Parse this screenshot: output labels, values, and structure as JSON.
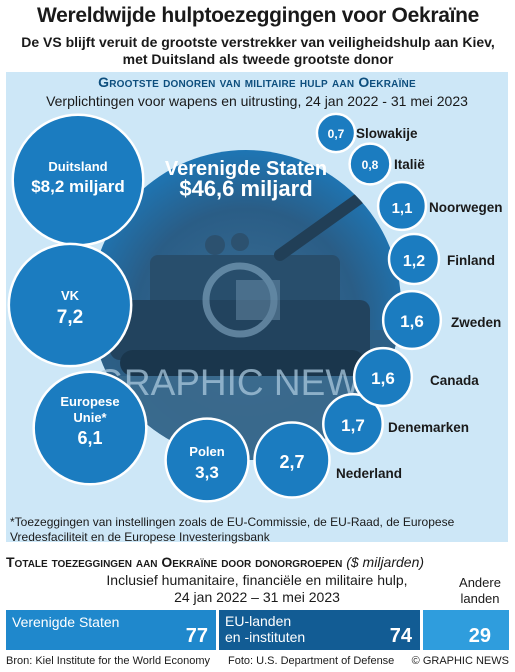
{
  "header": {
    "title": "Wereldwijde hulptoezeggingen voor Oekraïne",
    "subtitle_line1": "De VS blijft veruit de grootste verstrekker van veiligheidshulp aan Kiev,",
    "subtitle_line2": "met Duitsland als tweede grootste donor"
  },
  "military_panel": {
    "heading": "Grootste donoren van militaire hulp aan Oekraïne",
    "subheading": "Verplichtingen voor wapens en uitrusting, 24 jan 2022 - 31 mei 2023",
    "watermark": "GRAPHIC NEWS",
    "footnote": "*Toezeggingen van instellingen zoals de EU-Commissie, de EU-Raad, de Europese Vredesfaciliteit en de Europese Investeringsbank"
  },
  "chart_data": [
    {
      "type": "bubble",
      "title": "Grootste donoren van militaire hulp aan Oekraïne",
      "unit": "$ miljard",
      "points": [
        {
          "name": "Verenigde Staten",
          "value": 46.6,
          "label": "$46,6 miljard"
        },
        {
          "name": "Duitsland",
          "value": 8.2,
          "label": "$8,2 miljard"
        },
        {
          "name": "VK",
          "value": 7.2,
          "label": "7,2"
        },
        {
          "name": "Europese Unie*",
          "value": 6.1,
          "label": "6,1"
        },
        {
          "name": "Polen",
          "value": 3.3,
          "label": "3,3"
        },
        {
          "name": "Nederland",
          "value": 2.7,
          "label": "2,7"
        },
        {
          "name": "Denemarken",
          "value": 1.7,
          "label": "1,7"
        },
        {
          "name": "Canada",
          "value": 1.6,
          "label": "1,6"
        },
        {
          "name": "Zweden",
          "value": 1.6,
          "label": "1,6"
        },
        {
          "name": "Finland",
          "value": 1.2,
          "label": "1,2"
        },
        {
          "name": "Noorwegen",
          "value": 1.1,
          "label": "1,1"
        },
        {
          "name": "Italië",
          "value": 0.8,
          "label": "0,8"
        },
        {
          "name": "Slowakije",
          "value": 0.7,
          "label": "0,7"
        }
      ]
    },
    {
      "type": "bar",
      "title": "Totale toezeggingen aan Oekraïne door donorgroepen",
      "unit": "($ miljarden)",
      "categories": [
        "Verenigde Staten",
        "EU-landen en -instituten",
        "Andere landen"
      ],
      "values": [
        77,
        74,
        29
      ]
    }
  ],
  "totals": {
    "heading": "Totale toezeggingen aan Oekraïne door donorgroepen",
    "unit": "($ miljarden)",
    "sub_line1": "Inclusief humanitaire, financiële en militaire hulp,",
    "sub_line2": "24 jan 2022 – 31 mei 2023",
    "other_line1": "Andere",
    "other_line2": "landen",
    "boxes": [
      {
        "label1": "Verenigde Staten",
        "label2": "",
        "value": "77"
      },
      {
        "label1": "EU-landen",
        "label2": "en -instituten",
        "value": "74"
      },
      {
        "label1": "",
        "label2": "",
        "value": "29"
      }
    ]
  },
  "footer": {
    "source": "Bron: Kiel Institute for the World Economy",
    "photo": "Foto: U.S. Department of Defense",
    "copyright": "© GRAPHIC NEWS"
  },
  "colors": {
    "bubble": "#1b7cc0",
    "panel": "#cde7f7",
    "us_box": "#1f88cc",
    "eu_box": "#125c94",
    "other_box": "#2f9ddd"
  }
}
